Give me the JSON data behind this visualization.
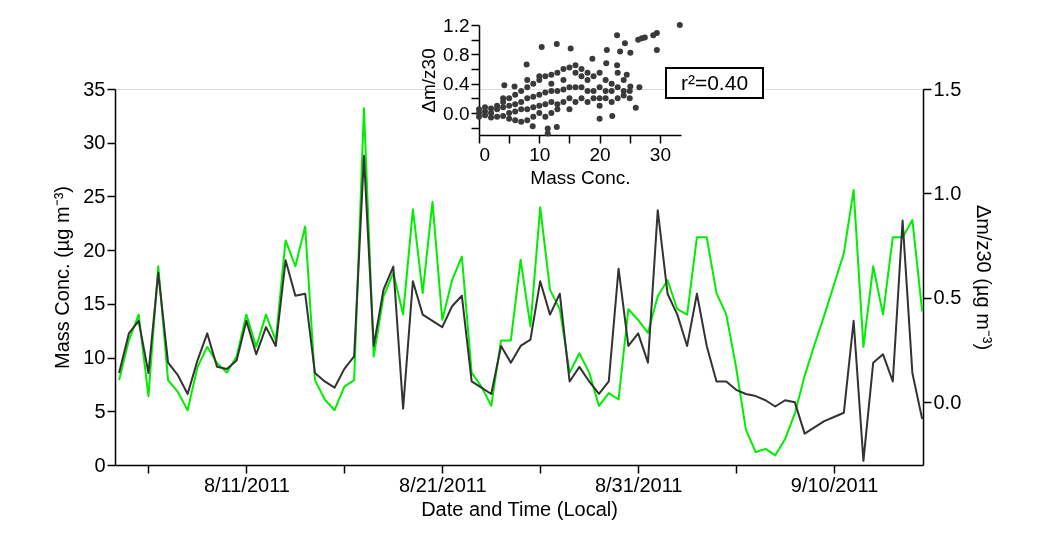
{
  "chart_data": [
    {
      "type": "line",
      "xlabel": "Date and Time (Local)",
      "ylabel": "Mass Conc. (µg m⁻³)",
      "y2label": "Δm/z30 (µg m⁻³)",
      "grid": false,
      "legend": false,
      "x": [
        "2011-08-04T12:00",
        "2011-08-05T00:00",
        "2011-08-05T12:00",
        "2011-08-06T00:00",
        "2011-08-06T12:00",
        "2011-08-07T00:00",
        "2011-08-07T12:00",
        "2011-08-08T00:00",
        "2011-08-08T12:00",
        "2011-08-09T00:00",
        "2011-08-09T12:00",
        "2011-08-10T00:00",
        "2011-08-10T12:00",
        "2011-08-11T00:00",
        "2011-08-11T12:00",
        "2011-08-12T00:00",
        "2011-08-12T12:00",
        "2011-08-13T00:00",
        "2011-08-13T12:00",
        "2011-08-14T00:00",
        "2011-08-14T12:00",
        "2011-08-15T00:00",
        "2011-08-15T12:00",
        "2011-08-16T00:00",
        "2011-08-16T12:00",
        "2011-08-17T00:00",
        "2011-08-17T12:00",
        "2011-08-18T00:00",
        "2011-08-18T12:00",
        "2011-08-19T00:00",
        "2011-08-19T12:00",
        "2011-08-20T00:00",
        "2011-08-20T12:00",
        "2011-08-21T00:00",
        "2011-08-21T12:00",
        "2011-08-22T00:00",
        "2011-08-22T12:00",
        "2011-08-23T00:00",
        "2011-08-23T12:00",
        "2011-08-24T00:00",
        "2011-08-24T12:00",
        "2011-08-25T00:00",
        "2011-08-25T12:00",
        "2011-08-26T00:00",
        "2011-08-26T12:00",
        "2011-08-27T00:00",
        "2011-08-27T12:00",
        "2011-08-28T00:00",
        "2011-08-28T12:00",
        "2011-08-29T00:00",
        "2011-08-29T12:00",
        "2011-08-30T00:00",
        "2011-08-30T12:00",
        "2011-08-31T00:00",
        "2011-08-31T12:00",
        "2011-09-01T00:00",
        "2011-09-01T12:00",
        "2011-09-02T00:00",
        "2011-09-02T12:00",
        "2011-09-03T00:00",
        "2011-09-03T12:00",
        "2011-09-04T00:00",
        "2011-09-04T12:00",
        "2011-09-05T00:00",
        "2011-09-05T12:00",
        "2011-09-06T00:00",
        "2011-09-06T12:00",
        "2011-09-07T00:00",
        "2011-09-07T12:00",
        "2011-09-08T00:00",
        "2011-09-08T12:00",
        "2011-09-09T00:00",
        "2011-09-09T12:00",
        "2011-09-10T00:00",
        "2011-09-10T12:00",
        "2011-09-11T00:00",
        "2011-09-11T12:00",
        "2011-09-12T00:00",
        "2011-09-12T12:00",
        "2011-09-13T00:00",
        "2011-09-13T12:00",
        "2011-09-14T00:00",
        "2011-09-14T12:00"
      ],
      "xlim": [
        "2011-08-04T07:00",
        "2011-09-14T13:00"
      ],
      "xticks": [
        {
          "value": "2011-08-06",
          "label": null
        },
        {
          "value": "2011-08-11",
          "label": "8/11/2011"
        },
        {
          "value": "2011-08-16",
          "label": null
        },
        {
          "value": "2011-08-21",
          "label": "8/21/2011"
        },
        {
          "value": "2011-08-26",
          "label": null
        },
        {
          "value": "2011-08-31",
          "label": "8/31/2011"
        },
        {
          "value": "2011-09-05",
          "label": null
        },
        {
          "value": "2011-09-10",
          "label": "9/10/2011"
        }
      ],
      "ylim": [
        0,
        35
      ],
      "yticks": [
        0,
        5,
        10,
        15,
        20,
        25,
        30,
        35
      ],
      "y2lim": [
        -0.3,
        1.5
      ],
      "y2ticks": [
        {
          "value": 0,
          "label": "0.0"
        },
        {
          "value": 0.5,
          "label": "0.5"
        },
        {
          "value": 1,
          "label": "1.0"
        },
        {
          "value": 1.5,
          "label": "1.5"
        }
      ],
      "series": [
        {
          "color": "#00ee00",
          "values": [
            7.9,
            11.6,
            14.0,
            6.4,
            18.5,
            7.9,
            6.8,
            5.1,
            9.1,
            11.0,
            9.5,
            8.6,
            10.1,
            14.0,
            11.0,
            14.0,
            11.6,
            20.9,
            18.5,
            22.2,
            7.9,
            6.1,
            5.1,
            7.3,
            7.9,
            33.2,
            10.1,
            15.7,
            17.9,
            14.0,
            23.8,
            16.0,
            24.5,
            13.5,
            17.2,
            19.4,
            8.6,
            7.3,
            5.5,
            11.6,
            11.6,
            19.1,
            12.9,
            24.0,
            16.3,
            14.5,
            8.6,
            10.4,
            8.6,
            5.5,
            6.7,
            6.1,
            14.5,
            13.5,
            12.3,
            15.7,
            17.2,
            14.5,
            14.0,
            21.2,
            21.2,
            16.0,
            14.0,
            9.1,
            3.3,
            1.2,
            1.5,
            0.9,
            2.4,
            4.8,
            8.3,
            11.2,
            13.9,
            16.8,
            19.7,
            25.6,
            11.0,
            18.5,
            14.0,
            21.2,
            21.2,
            22.8,
            14.3
          ]
        },
        {
          "color": "#333333",
          "axis": "y2",
          "values": [
            0.14,
            0.33,
            0.39,
            0.14,
            0.62,
            0.19,
            0.13,
            0.04,
            0.2,
            0.33,
            0.17,
            0.16,
            0.2,
            0.39,
            0.23,
            0.36,
            0.27,
            0.68,
            0.51,
            0.52,
            0.14,
            0.1,
            0.07,
            0.16,
            0.22,
            1.18,
            0.27,
            0.54,
            0.65,
            -0.03,
            0.58,
            0.42,
            0.39,
            0.36,
            0.46,
            0.51,
            0.1,
            0.07,
            0.04,
            0.27,
            0.19,
            0.27,
            0.3,
            0.58,
            0.42,
            0.52,
            0.1,
            0.17,
            0.1,
            0.04,
            0.1,
            0.64,
            0.27,
            0.33,
            0.19,
            0.92,
            0.52,
            0.42,
            0.27,
            0.52,
            0.27,
            0.1,
            0.1,
            0.06,
            0.04,
            0.03,
            0.01,
            -0.02,
            0.01,
            0.0,
            -0.15,
            -0.12,
            -0.09,
            -0.07,
            -0.05,
            0.39,
            -0.28,
            0.19,
            0.23,
            0.1,
            0.87,
            0.14,
            -0.08
          ]
        }
      ]
    },
    {
      "type": "scatter",
      "xlabel": "Mass Conc.",
      "ylabel": "Δm/z30",
      "grid": false,
      "xlim": [
        0,
        33.5
      ],
      "xticks": [
        0,
        {
          "value": 5,
          "label": null
        },
        10,
        {
          "value": 15,
          "label": null
        },
        20,
        {
          "value": 25,
          "label": null
        },
        30
      ],
      "ylim": [
        -0.3,
        1.2
      ],
      "yticks": [
        {
          "value": -0.2,
          "label": null
        },
        {
          "value": 0,
          "label": "0.0"
        },
        {
          "value": 0.2,
          "label": null
        },
        {
          "value": 0.4,
          "label": "0.4"
        },
        {
          "value": 0.6,
          "label": null
        },
        {
          "value": 0.8,
          "label": "0.8"
        },
        {
          "value": 1,
          "label": null
        },
        {
          "value": 1.2,
          "label": "1.2"
        }
      ],
      "annotations": [
        "r²=0.40"
      ],
      "x": [
        33.3,
        29.5,
        28.9,
        27.5,
        27,
        26.4,
        22.9,
        24.2,
        29.5,
        25.1,
        23.4,
        21.2,
        10.4,
        12.9,
        15.2,
        7.9,
        18.8,
        21.1,
        22.9,
        24.5,
        25.1,
        26.6,
        26,
        24,
        20,
        22.1,
        11.4,
        12.9,
        11.4,
        8.9,
        4.2,
        5.9,
        0,
        0,
        0,
        1,
        1,
        1,
        2,
        2,
        2,
        3,
        3,
        3,
        4,
        4,
        4,
        4,
        5,
        5,
        5,
        5,
        6,
        6,
        6,
        6,
        7,
        7,
        7,
        7,
        8,
        8,
        8,
        8,
        8,
        9,
        9,
        9,
        9,
        10,
        10,
        10,
        10,
        10,
        11,
        11,
        11,
        11,
        12,
        12,
        12,
        12,
        12,
        13,
        13,
        13,
        13,
        14,
        14,
        14,
        14,
        15,
        15,
        15,
        15,
        16,
        16,
        16,
        16,
        17,
        17,
        17,
        17,
        18,
        18,
        18,
        18,
        19,
        19,
        19,
        20,
        20,
        20,
        20,
        21,
        21,
        21,
        22,
        22,
        22,
        23,
        23,
        23,
        24,
        24,
        25,
        25
      ],
      "series": [
        {
          "color": "#3a3a3a",
          "values": [
            1.2,
            1.09,
            1.06,
            1.03,
            1.02,
            1.0,
            1.06,
            0.95,
            0.86,
            0.82,
            0.84,
            0.86,
            0.9,
            0.94,
            0.88,
            0.66,
            0.74,
            0.68,
            0.65,
            0.52,
            0.36,
            0.35,
            0.07,
            0.24,
            -0.08,
            -0.04,
            -0.21,
            -0.19,
            -0.28,
            -0.18,
            0.38,
            0.36,
            0.0,
            0.05,
            -0.05,
            0.02,
            -0.03,
            0.08,
            0.0,
            0.06,
            -0.06,
            0.05,
            0.1,
            -0.05,
            0.08,
            0.15,
            -0.04,
            0.2,
            0.1,
            0.2,
            0.0,
            -0.08,
            0.12,
            0.25,
            0.02,
            -0.1,
            0.15,
            0.3,
            0.05,
            -0.12,
            0.2,
            0.35,
            0.05,
            -0.1,
            0.45,
            0.22,
            0.4,
            0.08,
            -0.05,
            0.25,
            0.45,
            0.1,
            0.0,
            0.5,
            0.28,
            0.5,
            0.12,
            -0.05,
            0.3,
            0.52,
            0.15,
            0.0,
            0.4,
            0.3,
            0.55,
            0.12,
            0.05,
            0.32,
            0.6,
            0.15,
            0.45,
            0.35,
            0.62,
            0.2,
            0.05,
            0.35,
            0.55,
            0.15,
            0.65,
            0.35,
            0.5,
            0.2,
            0.6,
            0.3,
            0.55,
            0.15,
            0.45,
            0.3,
            0.5,
            0.2,
            0.35,
            0.55,
            0.2,
            0.1,
            0.3,
            0.45,
            0.2,
            0.4,
            0.3,
            0.15,
            0.35,
            0.55,
            0.2,
            0.3,
            0.45,
            0.2,
            0.3
          ]
        }
      ]
    }
  ]
}
